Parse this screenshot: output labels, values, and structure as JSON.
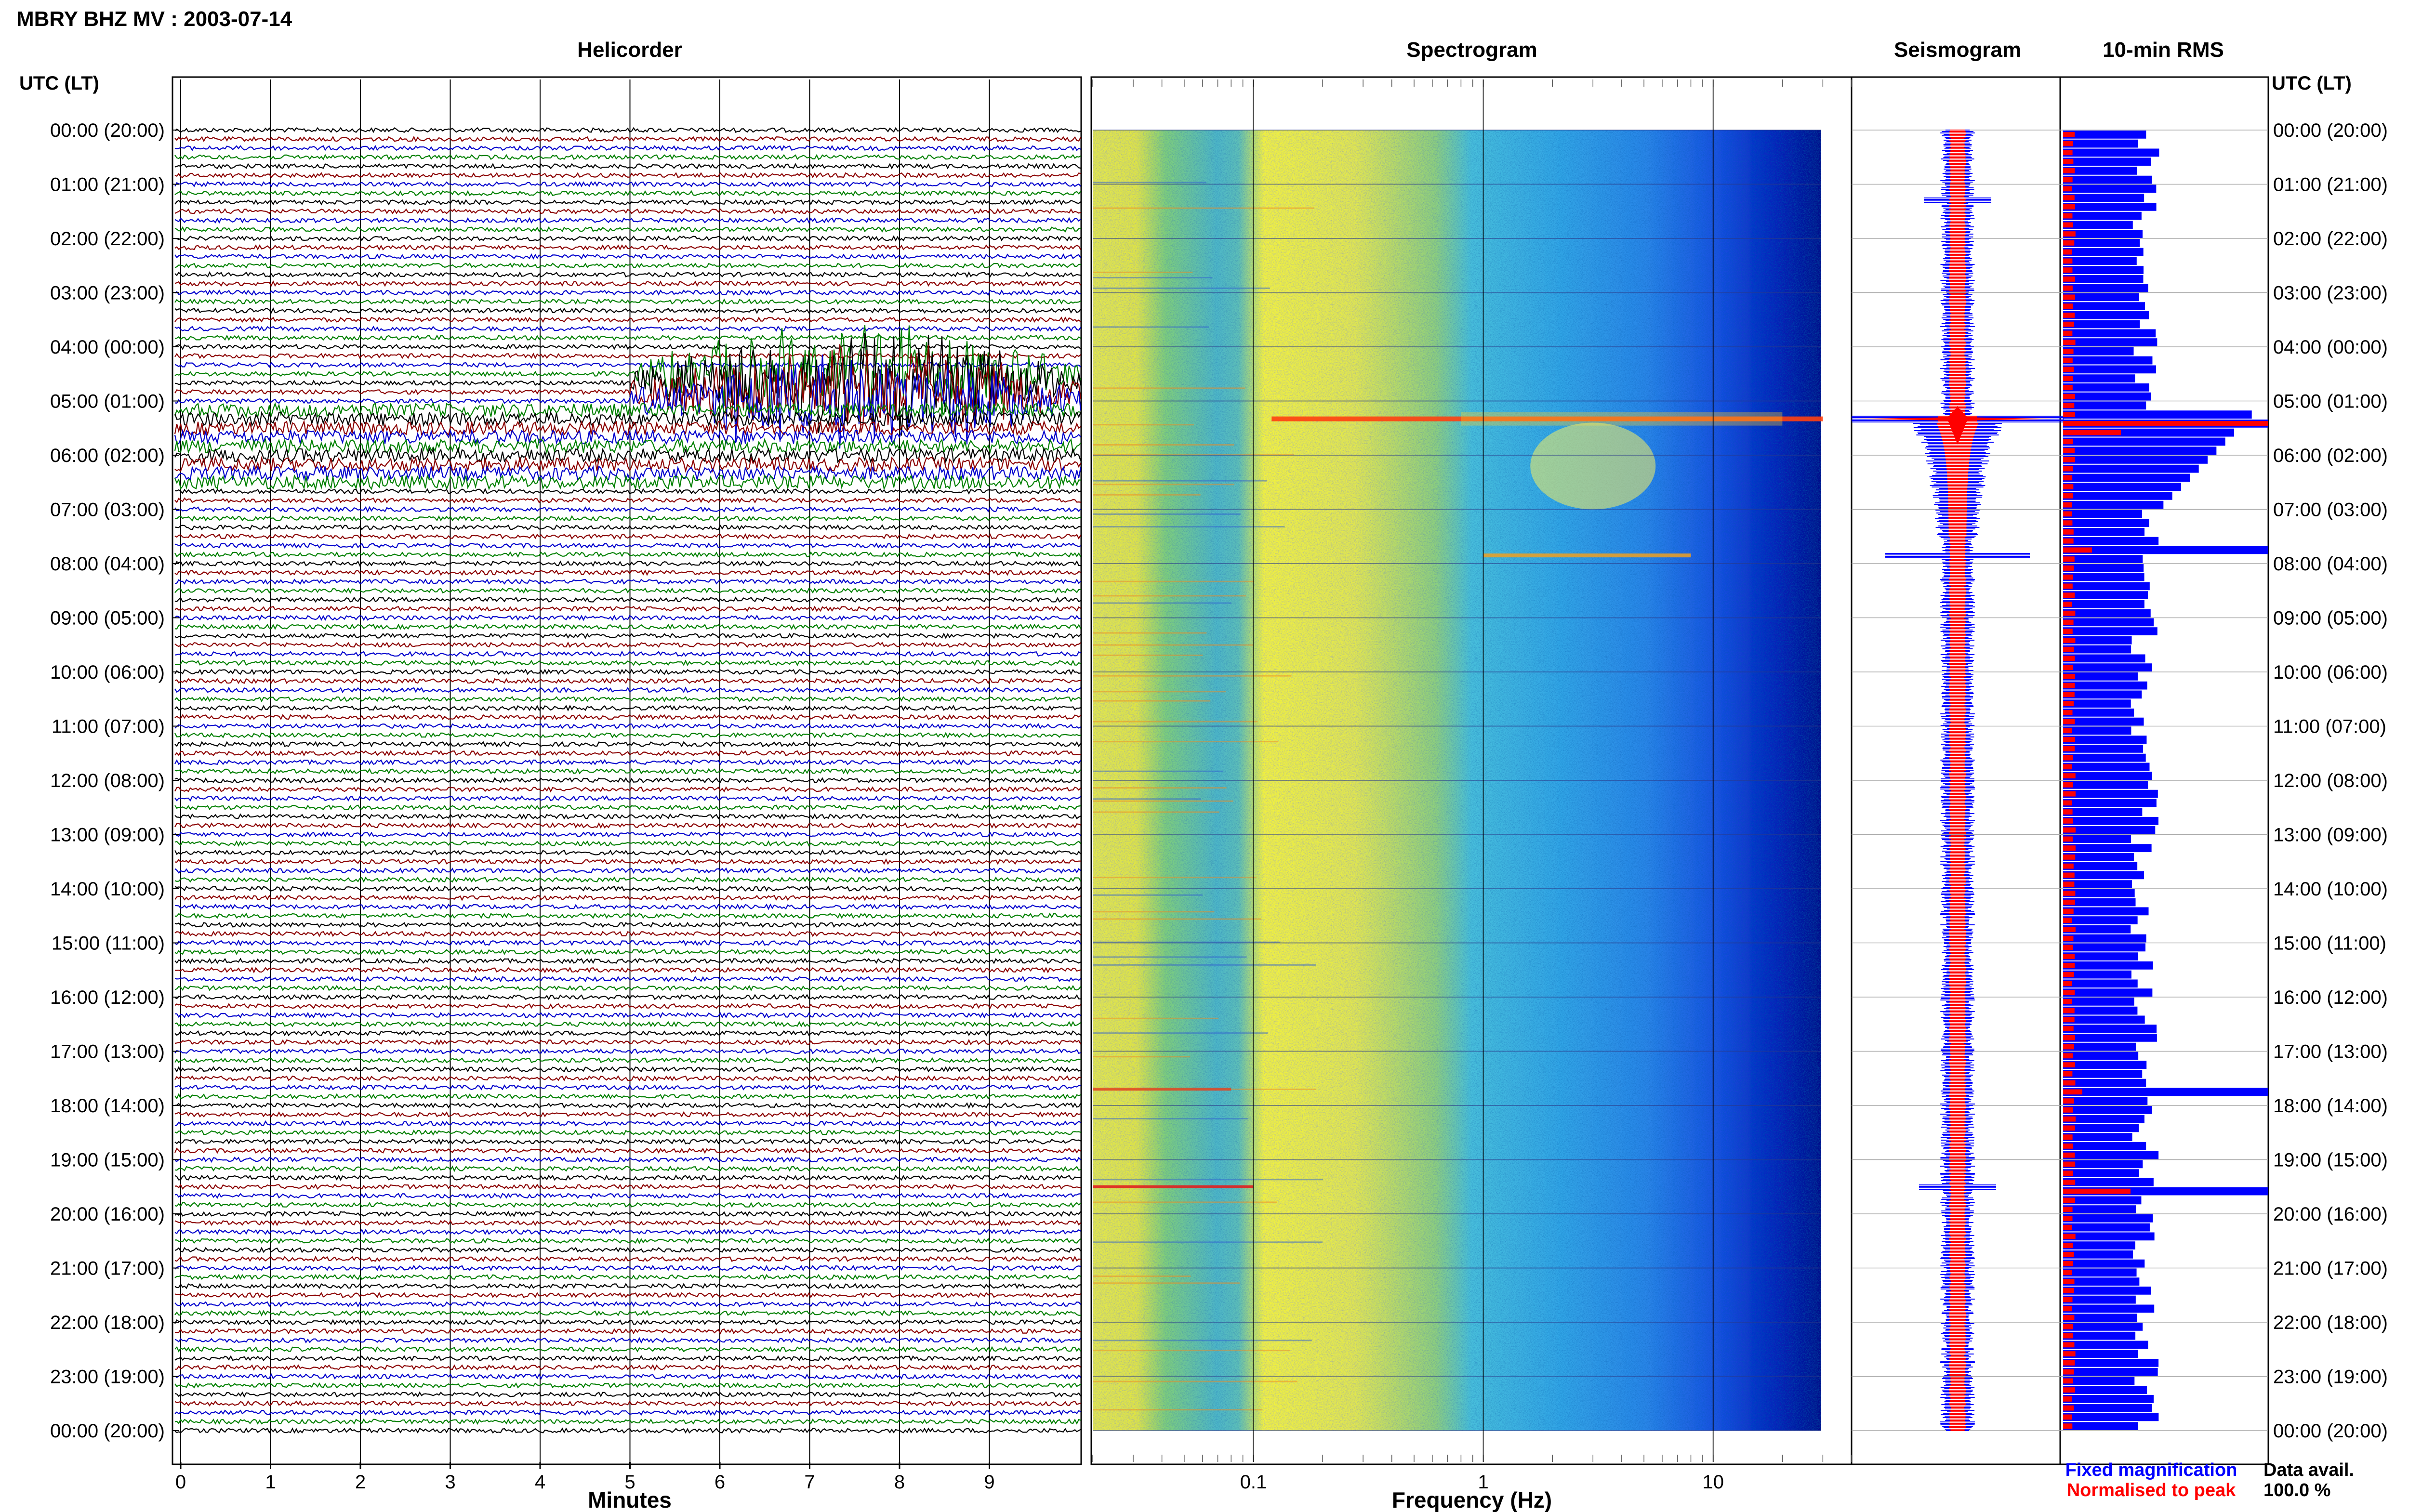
{
  "header": {
    "station_title": "MBRY BHZ MV : 2003-07-14",
    "utc_lt_label": "UTC (LT)"
  },
  "panels": {
    "helicorder": "Helicorder",
    "spectrogram": "Spectrogram",
    "seismogram": "Seismogram",
    "rms": "10-min RMS"
  },
  "legend": {
    "fixed": "Fixed magnification",
    "normalised": "Normalised to peak",
    "fixed_color": "#0000ff",
    "normalised_color": "#ff0000"
  },
  "availability": {
    "label": "Data avail.",
    "value": "100.0 %"
  },
  "colors": {
    "trace_cycle": [
      "#000000",
      "#8b0000",
      "#0000cd",
      "#008000"
    ],
    "rms_fixed": "#0000ff",
    "rms_peak": "#ff0000"
  },
  "chart_data": [
    {
      "type": "line",
      "name": "helicorder",
      "title": "Helicorder",
      "xlabel": "Minutes",
      "x_ticks": [
        0,
        1,
        2,
        3,
        4,
        5,
        6,
        7,
        8,
        9
      ],
      "xlim": [
        0,
        10
      ],
      "rows_per_hour": 6,
      "y_ticks": [
        "00:00 (20:00)",
        "01:00 (21:00)",
        "02:00 (22:00)",
        "03:00 (23:00)",
        "04:00 (00:00)",
        "05:00 (01:00)",
        "06:00 (02:00)",
        "07:00 (03:00)",
        "08:00 (04:00)",
        "09:00 (05:00)",
        "10:00 (06:00)",
        "11:00 (07:00)",
        "12:00 (08:00)",
        "13:00 (09:00)",
        "14:00 (10:00)",
        "15:00 (11:00)",
        "16:00 (12:00)",
        "17:00 (13:00)",
        "18:00 (14:00)",
        "19:00 (15:00)",
        "20:00 (16:00)",
        "21:00 (17:00)",
        "22:00 (18:00)",
        "23:00 (19:00)",
        "00:00 (20:00)"
      ]
    },
    {
      "type": "heatmap",
      "name": "spectrogram",
      "title": "Spectrogram",
      "xlabel": "Frequency (Hz)",
      "x_scale": "log",
      "xlim": [
        0.02,
        40
      ],
      "x_ticks": [
        0.1,
        1,
        10
      ],
      "x_tick_labels": [
        "0.1",
        "1",
        "10"
      ]
    },
    {
      "type": "line",
      "name": "seismogram",
      "title": "Seismogram",
      "series": [
        {
          "name": "Fixed magnification",
          "color": "#0000ff"
        },
        {
          "name": "Normalised to peak",
          "color": "#ff0000"
        }
      ]
    },
    {
      "type": "bar",
      "name": "rms",
      "title": "10-min RMS",
      "orientation": "horizontal",
      "series": [
        {
          "name": "Fixed magnification",
          "color": "#0000ff"
        },
        {
          "name": "Normalised to peak",
          "color": "#ff0000"
        }
      ]
    }
  ]
}
